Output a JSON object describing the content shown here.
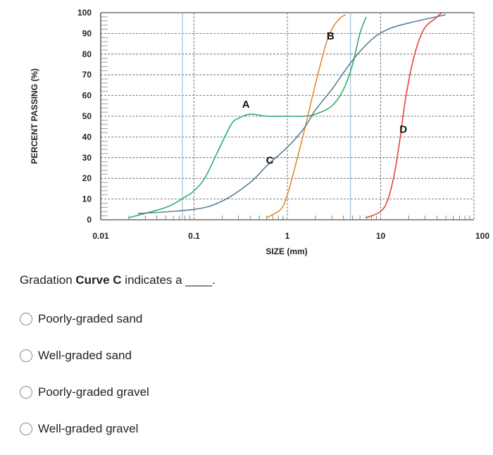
{
  "chart_data": {
    "type": "line",
    "x_scale": "log",
    "xlim": [
      0.01,
      100
    ],
    "ylim": [
      0,
      100
    ],
    "xlabel": "SIZE (mm)",
    "ylabel": "PERCENT PASSING (%)",
    "x_ticks": [
      "0.01",
      "0.1",
      "1",
      "10",
      "100"
    ],
    "y_ticks": [
      "0",
      "10",
      "20",
      "30",
      "40",
      "50",
      "60",
      "70",
      "80",
      "90",
      "100"
    ],
    "grid": true,
    "series": [
      {
        "name": "A",
        "color": "#2fae6a",
        "points": [
          [
            0.02,
            1
          ],
          [
            0.05,
            6
          ],
          [
            0.08,
            11
          ],
          [
            0.1,
            14
          ],
          [
            0.13,
            20
          ],
          [
            0.18,
            33
          ],
          [
            0.25,
            46
          ],
          [
            0.3,
            49
          ],
          [
            0.4,
            51
          ],
          [
            0.6,
            50
          ],
          [
            1,
            50
          ],
          [
            1.5,
            50
          ],
          [
            2,
            51
          ],
          [
            3,
            55
          ],
          [
            4,
            63
          ],
          [
            5,
            75
          ],
          [
            6,
            90
          ],
          [
            7,
            98
          ]
        ]
      },
      {
        "name": "B",
        "color": "#e38a33",
        "points": [
          [
            0.6,
            1
          ],
          [
            0.85,
            5
          ],
          [
            1,
            12
          ],
          [
            1.2,
            25
          ],
          [
            1.5,
            42
          ],
          [
            1.8,
            57
          ],
          [
            2.2,
            73
          ],
          [
            2.6,
            85
          ],
          [
            3,
            92
          ],
          [
            3.6,
            97
          ],
          [
            4.2,
            99
          ]
        ]
      },
      {
        "name": "C",
        "color": "#5b7f95",
        "points": [
          [
            0.025,
            3
          ],
          [
            0.1,
            5
          ],
          [
            0.2,
            9
          ],
          [
            0.4,
            18
          ],
          [
            0.6,
            26
          ],
          [
            1,
            35
          ],
          [
            1.5,
            44
          ],
          [
            2,
            53
          ],
          [
            3,
            63
          ],
          [
            5,
            77
          ],
          [
            8,
            87
          ],
          [
            12,
            92
          ],
          [
            20,
            95
          ],
          [
            50,
            99
          ]
        ]
      },
      {
        "name": "D",
        "color": "#e5443a",
        "points": [
          [
            7,
            1
          ],
          [
            10,
            4
          ],
          [
            12,
            10
          ],
          [
            14,
            22
          ],
          [
            16,
            38
          ],
          [
            18,
            55
          ],
          [
            21,
            72
          ],
          [
            25,
            85
          ],
          [
            30,
            93
          ],
          [
            38,
            97
          ],
          [
            45,
            100
          ]
        ]
      }
    ]
  },
  "question": {
    "prefix": "Gradation ",
    "bold": "Curve C",
    "suffix": " indicates a ____."
  },
  "options": [
    {
      "label": "Poorly-graded sand"
    },
    {
      "label": "Well-graded sand"
    },
    {
      "label": "Poorly-graded gravel"
    },
    {
      "label": "Well-graded gravel"
    }
  ]
}
